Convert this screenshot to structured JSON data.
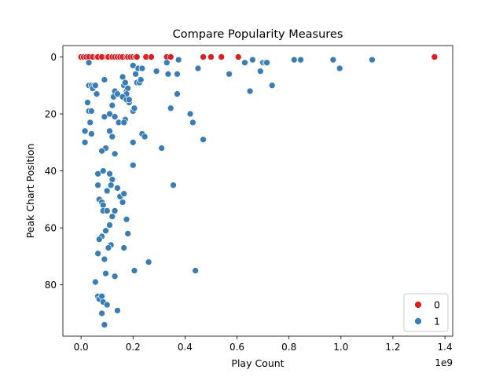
{
  "chart_data": {
    "type": "scatter",
    "title": "Compare Popularity Measures",
    "xlabel": "Play Count",
    "ylabel": "Peak Chart Position",
    "x_offset_label": "1e9",
    "xlim": [
      -0.07,
      1.43
    ],
    "ylim": [
      98,
      -4
    ],
    "x_ticks": [
      0.0,
      0.2,
      0.4,
      0.6,
      0.8,
      1.0,
      1.2,
      1.4
    ],
    "x_tick_labels": [
      "0.0",
      "0.2",
      "0.4",
      "0.6",
      "0.8",
      "1.0",
      "1.2",
      "1.4"
    ],
    "y_ticks": [
      0,
      20,
      40,
      60,
      80
    ],
    "y_tick_labels": [
      "0",
      "20",
      "40",
      "60",
      "80"
    ],
    "y_inverted": true,
    "grid": false,
    "legend_placement": "bottom-right",
    "series": [
      {
        "name": "0",
        "color": "#e41a1c",
        "points": [
          [
            0.0,
            0
          ],
          [
            0.01,
            0
          ],
          [
            0.02,
            0
          ],
          [
            0.03,
            0
          ],
          [
            0.045,
            0
          ],
          [
            0.06,
            0
          ],
          [
            0.065,
            0
          ],
          [
            0.08,
            0
          ],
          [
            0.1,
            0
          ],
          [
            0.105,
            0
          ],
          [
            0.12,
            0
          ],
          [
            0.13,
            0
          ],
          [
            0.14,
            0
          ],
          [
            0.15,
            0
          ],
          [
            0.16,
            0
          ],
          [
            0.175,
            0
          ],
          [
            0.18,
            0
          ],
          [
            0.19,
            0
          ],
          [
            0.2,
            0
          ],
          [
            0.21,
            0
          ],
          [
            0.215,
            0
          ],
          [
            0.25,
            0
          ],
          [
            0.27,
            0
          ],
          [
            0.33,
            0
          ],
          [
            0.345,
            0
          ],
          [
            0.47,
            0
          ],
          [
            0.5,
            0
          ],
          [
            0.54,
            0
          ],
          [
            0.605,
            0
          ],
          [
            1.36,
            0
          ]
        ]
      },
      {
        "name": "1",
        "color": "#377eb8",
        "points": [
          [
            0.03,
            2
          ],
          [
            0.2,
            3
          ],
          [
            0.22,
            4
          ],
          [
            0.235,
            4
          ],
          [
            0.29,
            5
          ],
          [
            0.33,
            2
          ],
          [
            0.335,
            6
          ],
          [
            0.37,
            6
          ],
          [
            0.375,
            1
          ],
          [
            0.45,
            4
          ],
          [
            0.57,
            6
          ],
          [
            0.63,
            2
          ],
          [
            0.66,
            1
          ],
          [
            0.69,
            5
          ],
          [
            0.7,
            2
          ],
          [
            0.71,
            2
          ],
          [
            0.715,
            2
          ],
          [
            0.82,
            1
          ],
          [
            0.845,
            1
          ],
          [
            0.97,
            1
          ],
          [
            0.995,
            4
          ],
          [
            1.12,
            1
          ],
          [
            0.65,
            12
          ],
          [
            0.735,
            10
          ],
          [
            0.37,
            13
          ],
          [
            0.345,
            18
          ],
          [
            0.42,
            20
          ],
          [
            0.43,
            23
          ],
          [
            0.47,
            29
          ],
          [
            0.31,
            32
          ],
          [
            0.355,
            45
          ],
          [
            0.44,
            75
          ],
          [
            0.26,
            72
          ],
          [
            0.03,
            10
          ],
          [
            0.04,
            10
          ],
          [
            0.05,
            10
          ],
          [
            0.045,
            11
          ],
          [
            0.06,
            13
          ],
          [
            0.025,
            16
          ],
          [
            0.03,
            19
          ],
          [
            0.04,
            19
          ],
          [
            0.035,
            23
          ],
          [
            0.015,
            26
          ],
          [
            0.04,
            27
          ],
          [
            0.015,
            30
          ],
          [
            0.09,
            8
          ],
          [
            0.09,
            21
          ],
          [
            0.13,
            12
          ],
          [
            0.125,
            14
          ],
          [
            0.12,
            17
          ],
          [
            0.11,
            20
          ],
          [
            0.13,
            21
          ],
          [
            0.145,
            23
          ],
          [
            0.11,
            26
          ],
          [
            0.12,
            28
          ],
          [
            0.095,
            32
          ],
          [
            0.08,
            33
          ],
          [
            0.14,
            13
          ],
          [
            0.16,
            7
          ],
          [
            0.165,
            10
          ],
          [
            0.17,
            9
          ],
          [
            0.175,
            12
          ],
          [
            0.18,
            11
          ],
          [
            0.175,
            13
          ],
          [
            0.185,
            16
          ],
          [
            0.2,
            19
          ],
          [
            0.17,
            22
          ],
          [
            0.165,
            23
          ],
          [
            0.2,
            30
          ],
          [
            0.21,
            6
          ],
          [
            0.215,
            9
          ],
          [
            0.225,
            9
          ],
          [
            0.23,
            8
          ],
          [
            0.205,
            18
          ],
          [
            0.235,
            27
          ],
          [
            0.245,
            28
          ],
          [
            0.13,
            34
          ],
          [
            0.2,
            38
          ],
          [
            0.065,
            41
          ],
          [
            0.085,
            40
          ],
          [
            0.11,
            41
          ],
          [
            0.12,
            43
          ],
          [
            0.115,
            45
          ],
          [
            0.065,
            45
          ],
          [
            0.1,
            47
          ],
          [
            0.14,
            46
          ],
          [
            0.15,
            49
          ],
          [
            0.165,
            48
          ],
          [
            0.16,
            51
          ],
          [
            0.07,
            50
          ],
          [
            0.08,
            51
          ],
          [
            0.085,
            52
          ],
          [
            0.085,
            54
          ],
          [
            0.1,
            54
          ],
          [
            0.13,
            54
          ],
          [
            0.12,
            56
          ],
          [
            0.175,
            57
          ],
          [
            0.11,
            59
          ],
          [
            0.095,
            61
          ],
          [
            0.08,
            63
          ],
          [
            0.18,
            62
          ],
          [
            0.07,
            64
          ],
          [
            0.115,
            66
          ],
          [
            0.105,
            67
          ],
          [
            0.165,
            67
          ],
          [
            0.065,
            69
          ],
          [
            0.09,
            71
          ],
          [
            0.095,
            76
          ],
          [
            0.13,
            77
          ],
          [
            0.205,
            75
          ],
          [
            0.055,
            79
          ],
          [
            0.065,
            84
          ],
          [
            0.07,
            85
          ],
          [
            0.08,
            84
          ],
          [
            0.085,
            86
          ],
          [
            0.1,
            87
          ],
          [
            0.14,
            89
          ],
          [
            0.08,
            90
          ],
          [
            0.09,
            94
          ],
          [
            0.055,
            10
          ],
          [
            0.16,
            14
          ],
          [
            0.175,
            15
          ],
          [
            0.185,
            15
          ]
        ]
      }
    ]
  }
}
